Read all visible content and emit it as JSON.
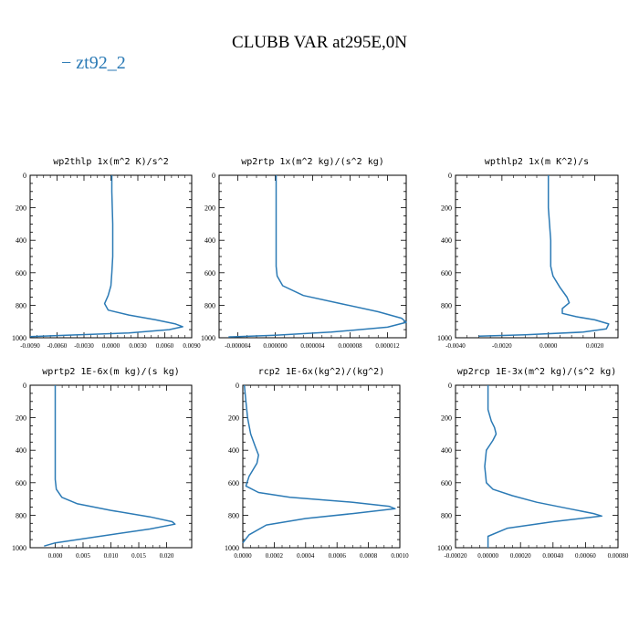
{
  "page": {
    "title": "CLUBB VAR at295E,0N",
    "legend_label": "− zt92_2"
  },
  "colors": {
    "series": "#2b7ab5",
    "axis": "#000000"
  },
  "chart_data": [
    {
      "type": "line",
      "title": "wp2thlp   1x(m^2 K)/s^2",
      "series_name": "zt92_2",
      "xlim": [
        -0.009,
        0.009
      ],
      "xticks": [
        -0.009,
        -0.006,
        -0.003,
        0,
        0.003,
        0.006,
        0.009
      ],
      "xtick_labels": [
        "-0.0090",
        "-0.0060",
        "-0.0030",
        "0.0000",
        "0.0030",
        "0.0060",
        "0.0090"
      ],
      "ylim": [
        1000,
        0
      ],
      "yticks": [
        0,
        200,
        400,
        600,
        800,
        1000
      ],
      "points": [
        [
          0.0001,
          0
        ],
        [
          0.0001,
          100
        ],
        [
          0.00015,
          200
        ],
        [
          0.0002,
          300
        ],
        [
          0.0002,
          400
        ],
        [
          0.0002,
          500
        ],
        [
          0.0001,
          600
        ],
        [
          0.0,
          680
        ],
        [
          -0.0003,
          740
        ],
        [
          -0.0007,
          790
        ],
        [
          -0.0003,
          830
        ],
        [
          0.002,
          860
        ],
        [
          0.005,
          890
        ],
        [
          0.0072,
          915
        ],
        [
          0.008,
          932
        ],
        [
          0.0065,
          950
        ],
        [
          0.002,
          970
        ],
        [
          -0.005,
          985
        ],
        [
          -0.009,
          993
        ]
      ]
    },
    {
      "type": "line",
      "title": "wp2rtp   1x(m^2 kg)/(s^2 kg)",
      "series_name": "zt92_2",
      "xlim": [
        -6e-06,
        1.4e-05
      ],
      "xticks": [
        -4e-06,
        0.0,
        4e-06,
        8e-06,
        1.2e-05
      ],
      "xtick_labels": [
        "-0.000004",
        "0.000000",
        "0.000004",
        "0.000008",
        "0.000012"
      ],
      "ylim": [
        1000,
        0
      ],
      "yticks": [
        0,
        200,
        400,
        600,
        800,
        1000
      ],
      "points": [
        [
          1e-07,
          0
        ],
        [
          1e-07,
          200
        ],
        [
          1e-07,
          400
        ],
        [
          1e-07,
          560
        ],
        [
          2e-07,
          620
        ],
        [
          8e-07,
          680
        ],
        [
          3e-06,
          740
        ],
        [
          7e-06,
          790
        ],
        [
          1.1e-05,
          840
        ],
        [
          1.35e-05,
          880
        ],
        [
          1.4e-05,
          905
        ],
        [
          1.2e-05,
          935
        ],
        [
          6e-06,
          965
        ],
        [
          0.0,
          985
        ],
        [
          -5e-06,
          995
        ]
      ]
    },
    {
      "type": "line",
      "title": "wpthlp2   1x(m K^2)/s",
      "series_name": "zt92_2",
      "xlim": [
        -0.004,
        0.003
      ],
      "xticks": [
        -0.004,
        -0.002,
        0.0,
        0.002
      ],
      "xtick_labels": [
        "-0.0040",
        "-0.0020",
        "0.0000",
        "0.0020"
      ],
      "ylim": [
        1000,
        0
      ],
      "yticks": [
        0,
        200,
        400,
        600,
        800,
        1000
      ],
      "points": [
        [
          0.0,
          0
        ],
        [
          0.0,
          200
        ],
        [
          0.0001,
          400
        ],
        [
          0.0001,
          560
        ],
        [
          0.0002,
          620
        ],
        [
          0.0005,
          690
        ],
        [
          0.0008,
          750
        ],
        [
          0.0009,
          785
        ],
        [
          0.0006,
          820
        ],
        [
          0.0006,
          850
        ],
        [
          0.0012,
          870
        ],
        [
          0.002,
          890
        ],
        [
          0.0026,
          915
        ],
        [
          0.0025,
          945
        ],
        [
          0.0015,
          965
        ],
        [
          -0.001,
          982
        ],
        [
          -0.003,
          990
        ]
      ]
    },
    {
      "type": "line",
      "title": "wprtp2   1E-6x(m kg)/(s kg)",
      "series_name": "zt92_2",
      "xlim": [
        -0.0045,
        0.0245
      ],
      "xticks": [
        0.0,
        0.005,
        0.01,
        0.015,
        0.02
      ],
      "xtick_labels": [
        "0.000",
        "0.005",
        "0.010",
        "0.015",
        "0.020"
      ],
      "ylim": [
        1000,
        0
      ],
      "yticks": [
        0,
        200,
        400,
        600,
        800,
        1000
      ],
      "points": [
        [
          0.0,
          0
        ],
        [
          0.0,
          200
        ],
        [
          0.0,
          400
        ],
        [
          0.0,
          580
        ],
        [
          0.0002,
          640
        ],
        [
          0.0012,
          690
        ],
        [
          0.004,
          730
        ],
        [
          0.01,
          770
        ],
        [
          0.017,
          810
        ],
        [
          0.021,
          840
        ],
        [
          0.0215,
          855
        ],
        [
          0.017,
          885
        ],
        [
          0.008,
          930
        ],
        [
          0.0,
          970
        ],
        [
          -0.002,
          990
        ]
      ]
    },
    {
      "type": "line",
      "title": "rcp2   1E-6x(kg^2)/(kg^2)",
      "series_name": "zt92_2",
      "xlim": [
        0.0,
        0.001
      ],
      "xticks": [
        0.0,
        0.0002,
        0.0004,
        0.0006,
        0.0008,
        0.001
      ],
      "xtick_labels": [
        "0.0000",
        "0.0002",
        "0.0004",
        "0.0006",
        "0.0008",
        "0.0010"
      ],
      "ylim": [
        1000,
        0
      ],
      "yticks": [
        0,
        200,
        400,
        600,
        800,
        1000
      ],
      "points": [
        [
          1e-05,
          0
        ],
        [
          2e-05,
          100
        ],
        [
          3e-05,
          200
        ],
        [
          5e-05,
          300
        ],
        [
          8e-05,
          380
        ],
        [
          0.0001,
          430
        ],
        [
          9e-05,
          480
        ],
        [
          4e-05,
          560
        ],
        [
          2e-05,
          620
        ],
        [
          0.0001,
          660
        ],
        [
          0.0003,
          690
        ],
        [
          0.0007,
          720
        ],
        [
          0.00093,
          745
        ],
        [
          0.00097,
          760
        ],
        [
          0.0007,
          790
        ],
        [
          0.0004,
          820
        ],
        [
          0.00015,
          860
        ],
        [
          4e-05,
          920
        ],
        [
          0.0,
          970
        ]
      ]
    },
    {
      "type": "line",
      "title": "wp2rcp   1E-3x(m^2 kg)/(s^2 kg)",
      "series_name": "zt92_2",
      "xlim": [
        -0.0002,
        0.0008
      ],
      "xticks": [
        -0.0002,
        0.0,
        0.0002,
        0.0004,
        0.0006,
        0.0008
      ],
      "xtick_labels": [
        "-0.00020",
        "0.00000",
        "0.00020",
        "0.00040",
        "0.00060",
        "0.00080"
      ],
      "ylim": [
        1000,
        0
      ],
      "yticks": [
        0,
        200,
        400,
        600,
        800,
        1000
      ],
      "points": [
        [
          0.0,
          0
        ],
        [
          0.0,
          150
        ],
        [
          2e-05,
          220
        ],
        [
          4e-05,
          260
        ],
        [
          5e-05,
          300
        ],
        [
          3e-05,
          340
        ],
        [
          -1e-05,
          400
        ],
        [
          -2e-05,
          500
        ],
        [
          -1e-05,
          600
        ],
        [
          3e-05,
          640
        ],
        [
          0.00015,
          680
        ],
        [
          0.0003,
          720
        ],
        [
          0.0005,
          760
        ],
        [
          0.00065,
          790
        ],
        [
          0.0007,
          805
        ],
        [
          0.0004,
          840
        ],
        [
          0.00012,
          880
        ],
        [
          0.0,
          930
        ],
        [
          0.0,
          1000
        ]
      ]
    }
  ]
}
